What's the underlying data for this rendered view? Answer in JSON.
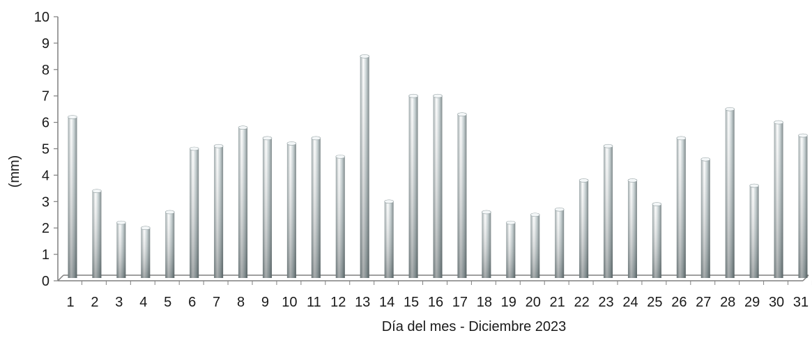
{
  "chart_data": {
    "type": "bar",
    "title": "",
    "xlabel": "Día del mes - Diciembre 2023",
    "ylabel": "(mm)",
    "ylim": [
      0,
      10
    ],
    "yticks": [
      0,
      1,
      2,
      3,
      4,
      5,
      6,
      7,
      8,
      9,
      10
    ],
    "grid": false,
    "legend": "none",
    "style": "3d-cylinder",
    "colors": {
      "bar_light": "#f2f6f7",
      "bar_mid": "#b6c3c5",
      "bar_dark": "#6f7c7e",
      "axis": "#7f7f7f"
    },
    "categories": [
      "1",
      "2",
      "3",
      "4",
      "5",
      "6",
      "7",
      "8",
      "9",
      "10",
      "11",
      "12",
      "13",
      "14",
      "15",
      "16",
      "17",
      "18",
      "19",
      "20",
      "21",
      "22",
      "23",
      "24",
      "25",
      "26",
      "27",
      "28",
      "29",
      "30",
      "31"
    ],
    "values": [
      6.2,
      3.4,
      2.2,
      2.0,
      2.6,
      5.0,
      5.1,
      5.8,
      5.4,
      5.2,
      5.4,
      4.7,
      8.5,
      3.0,
      7.0,
      7.0,
      6.3,
      2.6,
      2.2,
      2.5,
      2.7,
      3.8,
      5.1,
      3.8,
      2.9,
      5.4,
      4.6,
      6.5,
      3.6,
      6.0,
      5.5
    ]
  }
}
